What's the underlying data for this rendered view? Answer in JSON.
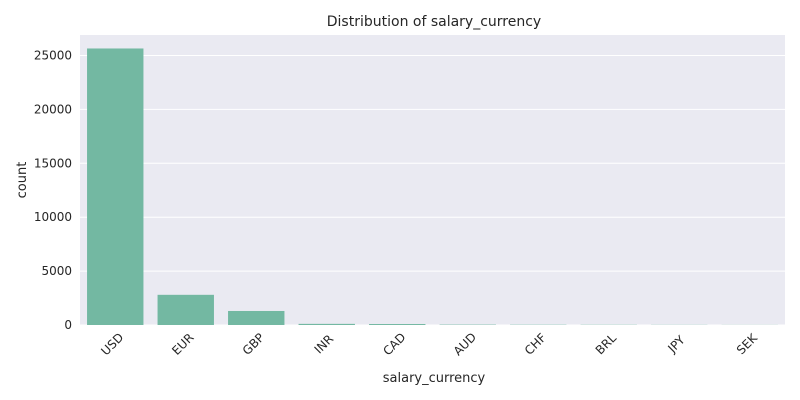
{
  "chart_data": {
    "type": "bar",
    "title": "Distribution of salary_currency",
    "xlabel": "salary_currency",
    "ylabel": "count",
    "categories": [
      "USD",
      "EUR",
      "GBP",
      "INR",
      "CAD",
      "AUD",
      "CHF",
      "BRL",
      "JPY",
      "SEK"
    ],
    "values": [
      25650,
      2800,
      1300,
      105,
      90,
      35,
      25,
      20,
      15,
      10
    ],
    "ylim": [
      0,
      26900
    ],
    "yticks": [
      0,
      5000,
      10000,
      15000,
      20000,
      25000
    ],
    "grid": true,
    "colors": {
      "bar": "#73b8a2",
      "plot_background": "#eaeaf2",
      "grid": "#ffffff",
      "text": "#262626"
    }
  }
}
